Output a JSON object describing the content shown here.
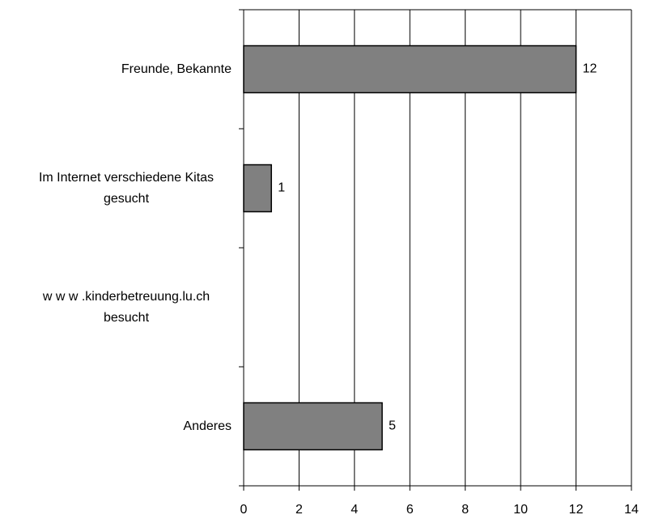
{
  "chart_data": {
    "type": "bar",
    "orientation": "horizontal",
    "categories": [
      "Freunde, Bekannte",
      "Im Internet verschiedene Kitas gesucht",
      "w w w .kinderbetreuung.lu.ch besucht",
      "Anderes"
    ],
    "values": [
      12,
      1,
      0,
      5
    ],
    "value_labels": [
      "12",
      "1",
      null,
      "5"
    ],
    "color": "#808080",
    "xlim": [
      0,
      14
    ],
    "xticks": [
      0,
      2,
      4,
      6,
      8,
      10,
      12,
      14
    ],
    "grid": true
  }
}
